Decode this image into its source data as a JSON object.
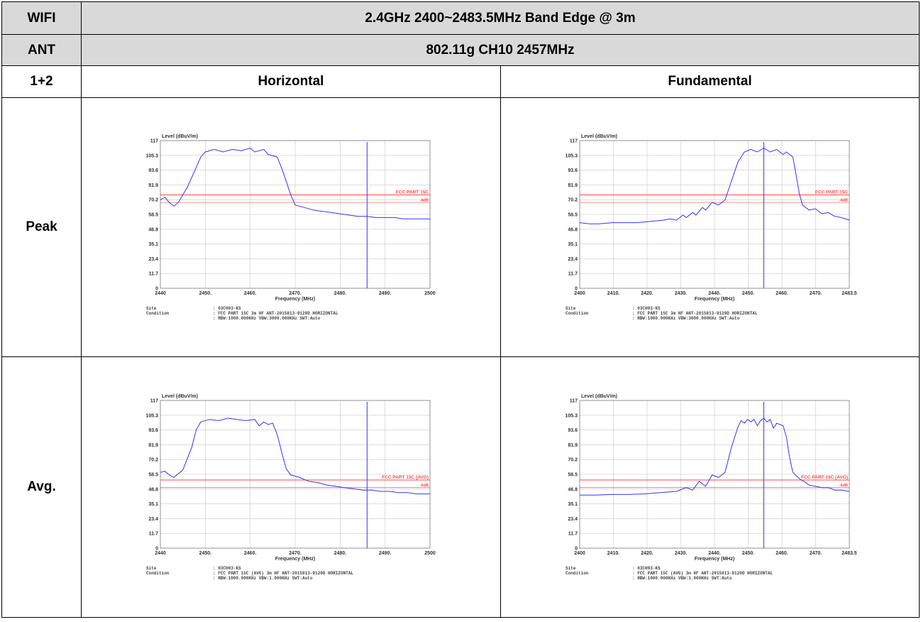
{
  "table": {
    "row1": {
      "left": "WIFI",
      "right": "2.4GHz 2400~2483.5MHz Band Edge @ 3m"
    },
    "row2": {
      "left": "ANT",
      "right": "802.11g CH10 2457MHz"
    },
    "row3": {
      "left": "1+2",
      "col1": "Horizontal",
      "col2": "Fundamental"
    },
    "row4": {
      "label": "Peak"
    },
    "row5": {
      "label": "Avg."
    }
  },
  "colors": {
    "header_bg": "#d9d9d9",
    "trace": "#3333ff",
    "limit": "#ff4444",
    "grid": "#c8c8c8"
  },
  "plots": [
    {
      "id": "peak-horizontal",
      "ylabel": "Level (dBuV/m)",
      "xlabel": "Frequency (MHz)",
      "y_ticks": [
        "117",
        "105.3",
        "93.6",
        "81.9",
        "70.2",
        "58.5",
        "46.8",
        "35.1",
        "23.4",
        "11.7",
        "0"
      ],
      "x_ticks": [
        "2440",
        "2450.",
        "2460.",
        "2470.",
        "2480.",
        "2490.",
        "2500"
      ],
      "x_range": [
        2440,
        2500
      ],
      "limit_label": "FCC PART 15C",
      "margin_label": "-6dB",
      "limit_value": 74,
      "margin_value": 68,
      "marker_x": 2486,
      "trace": [
        [
          2440,
          70
        ],
        [
          2441,
          72
        ],
        [
          2442,
          68
        ],
        [
          2443,
          65
        ],
        [
          2444,
          68
        ],
        [
          2446,
          80
        ],
        [
          2448,
          96
        ],
        [
          2449,
          104
        ],
        [
          2450,
          108
        ],
        [
          2452,
          110
        ],
        [
          2454,
          108
        ],
        [
          2456,
          110
        ],
        [
          2458,
          109
        ],
        [
          2460,
          111
        ],
        [
          2461,
          108
        ],
        [
          2463,
          110
        ],
        [
          2464,
          106
        ],
        [
          2466,
          104
        ],
        [
          2467,
          95
        ],
        [
          2468,
          85
        ],
        [
          2469,
          74
        ],
        [
          2470,
          66
        ],
        [
          2472,
          64
        ],
        [
          2474,
          62
        ],
        [
          2476,
          61
        ],
        [
          2478,
          60
        ],
        [
          2480,
          59
        ],
        [
          2482,
          58
        ],
        [
          2484,
          57
        ],
        [
          2486,
          57
        ],
        [
          2488,
          56
        ],
        [
          2490,
          56
        ],
        [
          2492,
          56
        ],
        [
          2494,
          55
        ],
        [
          2496,
          55
        ],
        [
          2498,
          55
        ],
        [
          2500,
          55
        ]
      ],
      "site_label": "Site",
      "site_value": ": 03CH03-KS",
      "condition_label": "Condition",
      "condition_line1": ": FCC PART 15C 3m HF ANT-2015813-9120D HORIZONTAL",
      "condition_line2": ": RBW:1000.000KHz VBW:3000.000KHz SWT:Auto"
    },
    {
      "id": "peak-fundamental",
      "ylabel": "Level (dBuV/m)",
      "xlabel": "Frequency (MHz)",
      "y_ticks": [
        "117",
        "105.3",
        "93.6",
        "81.9",
        "70.2",
        "58.5",
        "46.8",
        "35.1",
        "23.4",
        "11.7",
        "0"
      ],
      "x_ticks": [
        "2400",
        "2410.",
        "2420.",
        "2430.",
        "2440.",
        "2450.",
        "2460.",
        "2470.",
        "2483.5"
      ],
      "x_range": [
        2400,
        2483.5
      ],
      "limit_label": "FCC PART 15C",
      "margin_label": "-6dB",
      "limit_value": 74,
      "margin_value": 68,
      "marker_x": 2457,
      "trace": [
        [
          2400,
          52
        ],
        [
          2403,
          51
        ],
        [
          2406,
          51
        ],
        [
          2410,
          52
        ],
        [
          2414,
          52
        ],
        [
          2418,
          52
        ],
        [
          2422,
          53
        ],
        [
          2426,
          54
        ],
        [
          2428,
          55
        ],
        [
          2430,
          54
        ],
        [
          2432,
          58
        ],
        [
          2433,
          56
        ],
        [
          2435,
          60
        ],
        [
          2436,
          58
        ],
        [
          2438,
          64
        ],
        [
          2439,
          62
        ],
        [
          2441,
          68
        ],
        [
          2443,
          66
        ],
        [
          2445,
          70
        ],
        [
          2447,
          85
        ],
        [
          2449,
          100
        ],
        [
          2451,
          108
        ],
        [
          2453,
          110
        ],
        [
          2455,
          108
        ],
        [
          2457,
          111
        ],
        [
          2459,
          108
        ],
        [
          2461,
          110
        ],
        [
          2463,
          106
        ],
        [
          2464,
          108
        ],
        [
          2466,
          104
        ],
        [
          2467,
          90
        ],
        [
          2468,
          75
        ],
        [
          2469,
          66
        ],
        [
          2471,
          62
        ],
        [
          2473,
          63
        ],
        [
          2475,
          59
        ],
        [
          2477,
          60
        ],
        [
          2479,
          57
        ],
        [
          2481,
          56
        ],
        [
          2483.5,
          54
        ]
      ],
      "site_label": "Site",
      "site_value": ": 03CH03-KS",
      "condition_label": "Condition",
      "condition_line1": ": FCC PART 15C 3m HF ANT-2015813-9120D HORIZONTAL",
      "condition_line2": ": RBW:1000.000KHz VBW:3000.000KHz SWT:Auto"
    },
    {
      "id": "avg-horizontal",
      "ylabel": "Level (dBuV/m)",
      "xlabel": "Frequency (MHz)",
      "y_ticks": [
        "117",
        "105.3",
        "93.6",
        "81.9",
        "70.2",
        "58.5",
        "46.8",
        "35.1",
        "23.4",
        "11.7",
        "0"
      ],
      "x_ticks": [
        "2440",
        "2450.",
        "2460.",
        "2470.",
        "2480.",
        "2490.",
        "2500"
      ],
      "x_range": [
        2440,
        2500
      ],
      "limit_label": "FCC PART 15C (AVG)",
      "margin_label": "-6dB",
      "limit_value": 54,
      "margin_value": 48,
      "marker_x": 2486,
      "trace": [
        [
          2440,
          60
        ],
        [
          2441,
          61
        ],
        [
          2442,
          58
        ],
        [
          2443,
          56
        ],
        [
          2445,
          62
        ],
        [
          2447,
          80
        ],
        [
          2448,
          94
        ],
        [
          2449,
          100
        ],
        [
          2451,
          102
        ],
        [
          2453,
          101
        ],
        [
          2455,
          103
        ],
        [
          2457,
          102
        ],
        [
          2459,
          101
        ],
        [
          2461,
          102
        ],
        [
          2462,
          97
        ],
        [
          2463,
          100
        ],
        [
          2464,
          98
        ],
        [
          2465,
          99
        ],
        [
          2466,
          90
        ],
        [
          2467,
          76
        ],
        [
          2468,
          63
        ],
        [
          2469,
          58
        ],
        [
          2471,
          56
        ],
        [
          2473,
          53
        ],
        [
          2475,
          52
        ],
        [
          2477,
          50
        ],
        [
          2479,
          49
        ],
        [
          2481,
          48
        ],
        [
          2483,
          47
        ],
        [
          2485,
          46
        ],
        [
          2487,
          46
        ],
        [
          2489,
          45
        ],
        [
          2491,
          45
        ],
        [
          2493,
          44
        ],
        [
          2495,
          44
        ],
        [
          2497,
          43
        ],
        [
          2500,
          43
        ]
      ],
      "site_label": "Site",
      "site_value": ": 03CH03-KS",
      "condition_label": "Condition",
      "condition_line1": ": FCC PART 15C (AVG) 3m HF ANT-2015813-9120D HORIZONTAL",
      "condition_line2": ": RBW:1000.000KHz VBW:1.000KHz SWT:Auto"
    },
    {
      "id": "avg-fundamental",
      "ylabel": "Level (dBuV/m)",
      "xlabel": "Frequency (MHz)",
      "y_ticks": [
        "117",
        "105.3",
        "93.6",
        "81.9",
        "70.2",
        "58.5",
        "46.8",
        "35.1",
        "23.4",
        "11.7",
        "0"
      ],
      "x_ticks": [
        "2400",
        "2410.",
        "2420.",
        "2430.",
        "2440.",
        "2450.",
        "2460.",
        "2470.",
        "2483.5"
      ],
      "x_range": [
        2400,
        2483.5
      ],
      "limit_label": "FCC PART 15C (AVG)",
      "margin_label": "-6dB",
      "limit_value": 54,
      "margin_value": 48,
      "marker_x": 2457,
      "trace": [
        [
          2400,
          42
        ],
        [
          2405,
          42
        ],
        [
          2410,
          42.5
        ],
        [
          2415,
          42.5
        ],
        [
          2420,
          43
        ],
        [
          2425,
          44
        ],
        [
          2430,
          45
        ],
        [
          2433,
          48
        ],
        [
          2435,
          46
        ],
        [
          2437,
          53
        ],
        [
          2439,
          49
        ],
        [
          2441,
          58
        ],
        [
          2443,
          56
        ],
        [
          2445,
          60
        ],
        [
          2447,
          80
        ],
        [
          2449,
          96
        ],
        [
          2450,
          101
        ],
        [
          2451,
          99
        ],
        [
          2452,
          102
        ],
        [
          2453,
          100
        ],
        [
          2454,
          102
        ],
        [
          2455,
          97
        ],
        [
          2456,
          101
        ],
        [
          2457,
          103
        ],
        [
          2458,
          100
        ],
        [
          2459,
          102
        ],
        [
          2460,
          95
        ],
        [
          2461,
          99
        ],
        [
          2463,
          97
        ],
        [
          2464,
          88
        ],
        [
          2465,
          72
        ],
        [
          2466,
          60
        ],
        [
          2468,
          55
        ],
        [
          2470,
          52
        ],
        [
          2471,
          50
        ],
        [
          2473,
          49
        ],
        [
          2475,
          48
        ],
        [
          2477,
          48
        ],
        [
          2479,
          46
        ],
        [
          2481,
          46
        ],
        [
          2483.5,
          45
        ]
      ],
      "site_label": "Site",
      "site_value": ": 03CH03-KS",
      "condition_label": "Condition",
      "condition_line1": ": FCC PART 15C (AVG) 3m HF ANT-2015813-9120D HORIZONTAL",
      "condition_line2": ": RBW:1000.000KHz VBW:1.000KHz SWT:Auto"
    }
  ]
}
